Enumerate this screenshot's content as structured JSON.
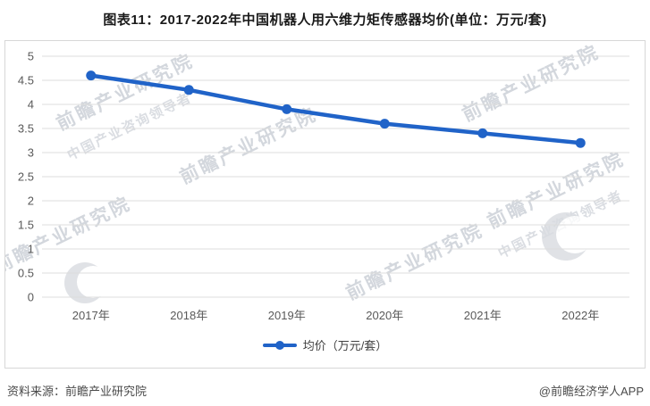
{
  "title": "图表11：2017-2022年中国机器人用六维力矩传感器均价(单位：万元/套)",
  "chart_data": {
    "type": "line",
    "title": "图表11：2017-2022年中国机器人用六维力矩传感器均价(单位：万元/套)",
    "categories": [
      "2017年",
      "2018年",
      "2019年",
      "2020年",
      "2021年",
      "2022年"
    ],
    "series": [
      {
        "name": "均价（万元/套）",
        "values": [
          4.6,
          4.3,
          3.9,
          3.6,
          3.4,
          3.2
        ]
      }
    ],
    "xlabel": "",
    "ylabel": "",
    "ylim": [
      0,
      5
    ],
    "yticks": [
      0,
      0.5,
      1,
      1.5,
      2,
      2.5,
      3,
      3.5,
      4,
      4.5,
      5
    ],
    "grid": true,
    "legend_position": "bottom",
    "line_color": "#2063c8",
    "grid_color": "#dcdcdc",
    "axis_text_color": "#595959"
  },
  "legend": {
    "label": "均价（万元/套）"
  },
  "footer": {
    "source": "资料来源：前瞻产业研究院",
    "credit": "@前瞻经济学人APP"
  },
  "watermark": {
    "text": "前瞻产业研究院",
    "subtext": "中国产业咨询领导者"
  }
}
